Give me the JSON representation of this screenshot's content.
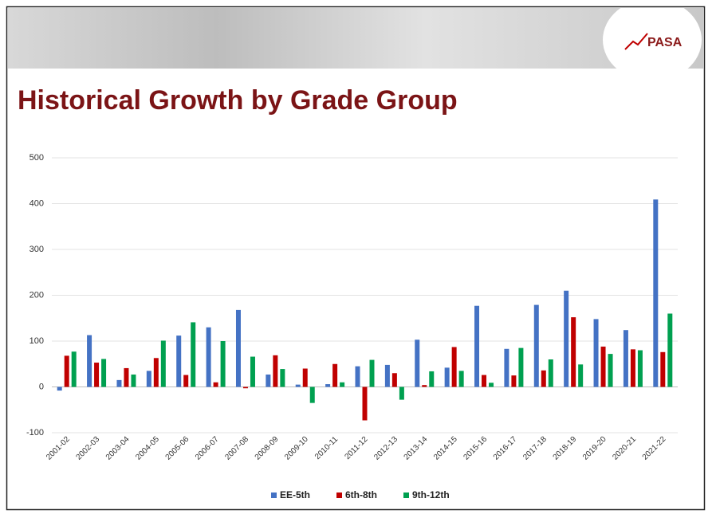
{
  "logo": "PASA",
  "chart_data": {
    "type": "bar",
    "title": "Historical Growth by Grade Group",
    "categories": [
      "2001-02",
      "2002-03",
      "2003-04",
      "2004-05",
      "2005-06",
      "2006-07",
      "2007-08",
      "2008-09",
      "2009-10",
      "2010-11",
      "2011-12",
      "2012-13",
      "2013-14",
      "2014-15",
      "2015-16",
      "2016-17",
      "2017-18",
      "2018-19",
      "2019-20",
      "2020-21",
      "2021-22"
    ],
    "series": [
      {
        "name": "EE-5th",
        "color": "#4472c4",
        "values": [
          -8,
          113,
          15,
          35,
          112,
          130,
          168,
          27,
          5,
          6,
          45,
          48,
          103,
          42,
          177,
          83,
          179,
          210,
          148,
          124,
          409
        ]
      },
      {
        "name": "6th-8th",
        "color": "#c00000",
        "values": [
          68,
          53,
          41,
          63,
          26,
          10,
          -3,
          69,
          40,
          50,
          -73,
          30,
          4,
          87,
          26,
          25,
          36,
          152,
          88,
          82,
          76
        ]
      },
      {
        "name": "9th-12th",
        "color": "#00a050",
        "values": [
          77,
          61,
          27,
          101,
          141,
          100,
          66,
          39,
          -35,
          10,
          59,
          -28,
          34,
          35,
          9,
          85,
          60,
          49,
          72,
          80,
          160
        ]
      }
    ],
    "ylim": [
      -100,
      500
    ],
    "yticks": [
      -100,
      0,
      100,
      200,
      300,
      400,
      500
    ],
    "grid": true,
    "legend": "bottom"
  }
}
